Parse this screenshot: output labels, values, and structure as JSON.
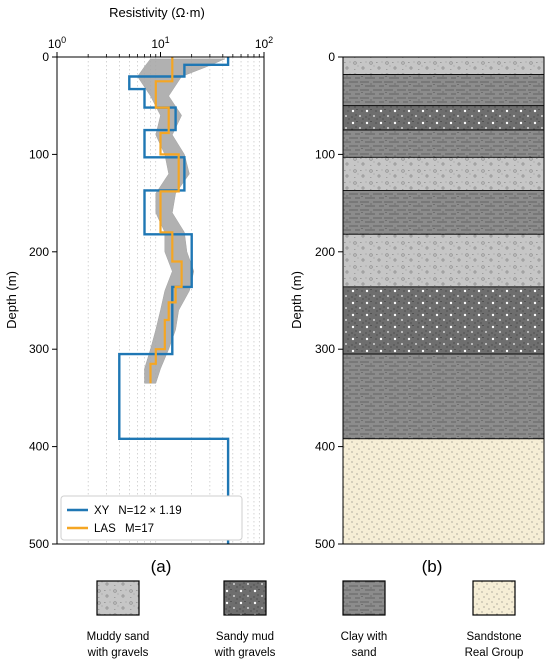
{
  "chart_data": [
    {
      "type": "line",
      "panel_label": "(a)",
      "xlabel": "Resistivity (Ω·m)",
      "ylabel": "Depth (m)",
      "x_scale": "log",
      "xlim": [
        1,
        100
      ],
      "ylim": [
        500,
        0
      ],
      "x_ticks": [
        {
          "value": 1,
          "base": "10",
          "exp": "0"
        },
        {
          "value": 10,
          "base": "10",
          "exp": "1"
        },
        {
          "value": 100,
          "base": "10",
          "exp": "2"
        }
      ],
      "y_ticks": [
        0,
        100,
        200,
        300,
        400,
        500
      ],
      "grid": "vertical minor dotted",
      "legend_position": "bottom-left",
      "series": [
        {
          "name": "XY",
          "legend_suffix": "N=12 × 1.19",
          "color": "#1f77b4",
          "step": true,
          "layers": [
            {
              "top": 0,
              "bottom": 8,
              "rho": 45
            },
            {
              "top": 8,
              "bottom": 20,
              "rho": 17
            },
            {
              "top": 20,
              "bottom": 33,
              "rho": 5
            },
            {
              "top": 33,
              "bottom": 52,
              "rho": 7
            },
            {
              "top": 52,
              "bottom": 75,
              "rho": 14
            },
            {
              "top": 75,
              "bottom": 103,
              "rho": 7
            },
            {
              "top": 103,
              "bottom": 137,
              "rho": 17
            },
            {
              "top": 137,
              "bottom": 182,
              "rho": 7
            },
            {
              "top": 182,
              "bottom": 236,
              "rho": 20
            },
            {
              "top": 236,
              "bottom": 305,
              "rho": 13
            },
            {
              "top": 305,
              "bottom": 392,
              "rho": 4
            },
            {
              "top": 392,
              "bottom": 500,
              "rho": 45
            }
          ]
        },
        {
          "name": "LAS",
          "legend_suffix": "M=17",
          "color": "#f5a623",
          "step": true,
          "layers": [
            {
              "top": 0,
              "bottom": 25,
              "rho": 13
            },
            {
              "top": 25,
              "bottom": 52,
              "rho": 9
            },
            {
              "top": 52,
              "bottom": 78,
              "rho": 12
            },
            {
              "top": 78,
              "bottom": 100,
              "rho": 10
            },
            {
              "top": 100,
              "bottom": 138,
              "rho": 15
            },
            {
              "top": 138,
              "bottom": 180,
              "rho": 10
            },
            {
              "top": 180,
              "bottom": 210,
              "rho": 13
            },
            {
              "top": 210,
              "bottom": 236,
              "rho": 16
            },
            {
              "top": 236,
              "bottom": 252,
              "rho": 14
            },
            {
              "top": 252,
              "bottom": 270,
              "rho": 12
            },
            {
              "top": 270,
              "bottom": 300,
              "rho": 11
            },
            {
              "top": 300,
              "bottom": 315,
              "rho": 9
            },
            {
              "top": 315,
              "bottom": 335,
              "rho": 8
            }
          ]
        },
        {
          "name": "",
          "color": "#a9a9a9",
          "band": true,
          "depth": [
            2,
            10,
            20,
            40,
            60,
            80,
            100,
            120,
            140,
            160,
            180,
            200,
            220,
            240,
            260,
            280,
            300,
            320,
            335
          ],
          "rho_low": [
            8,
            7,
            6,
            8,
            10,
            9,
            11,
            12,
            9,
            9,
            11,
            11,
            13,
            11,
            10,
            9,
            8,
            7,
            7
          ],
          "rho_high": [
            42,
            28,
            16,
            12,
            16,
            13,
            17,
            19,
            14,
            13,
            17,
            18,
            21,
            19,
            15,
            14,
            12,
            10,
            9
          ]
        }
      ]
    },
    {
      "type": "table",
      "panel_label": "(b)",
      "ylabel": "Depth (m)",
      "ylim": [
        500,
        0
      ],
      "y_ticks": [
        0,
        100,
        200,
        300,
        400,
        500
      ],
      "layers": [
        {
          "top": 0,
          "bottom": 18,
          "lith": "muddy-sand"
        },
        {
          "top": 18,
          "bottom": 50,
          "lith": "clay"
        },
        {
          "top": 50,
          "bottom": 75,
          "lith": "sandy-mud"
        },
        {
          "top": 75,
          "bottom": 103,
          "lith": "clay"
        },
        {
          "top": 103,
          "bottom": 137,
          "lith": "muddy-sand"
        },
        {
          "top": 137,
          "bottom": 182,
          "lith": "clay"
        },
        {
          "top": 182,
          "bottom": 236,
          "lith": "muddy-sand"
        },
        {
          "top": 236,
          "bottom": 305,
          "lith": "sandy-mud"
        },
        {
          "top": 305,
          "bottom": 392,
          "lith": "clay"
        },
        {
          "top": 392,
          "bottom": 500,
          "lith": "sandstone"
        }
      ]
    }
  ],
  "lithology_key": [
    {
      "id": "muddy-sand",
      "line1": "Muddy sand",
      "line2": "with gravels",
      "fill": "#c6c6c6"
    },
    {
      "id": "sandy-mud",
      "line1": "Sandy mud",
      "line2": "with gravels",
      "fill": "#6e6e6e"
    },
    {
      "id": "clay",
      "line1": "Clay with",
      "line2": "sand",
      "fill": "#8c8c8c"
    },
    {
      "id": "sandstone",
      "line1": "Sandstone",
      "line2": "Real Group",
      "fill": "#f6eed6"
    }
  ]
}
